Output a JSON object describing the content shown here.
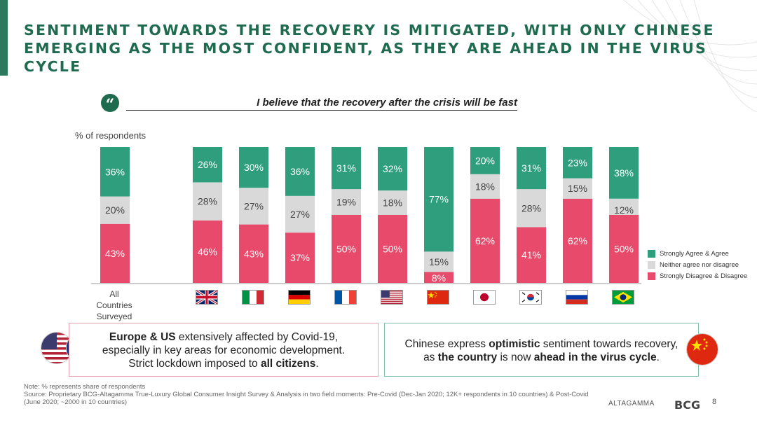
{
  "title": "SENTIMENT TOWARDS THE RECOVERY IS MITIGATED, WITH ONLY CHINESE EMERGING AS THE MOST CONFIDENT, AS THEY ARE AHEAD IN THE VIRUS CYCLE",
  "quote": "I believe that the recovery after the crisis will be fast",
  "quote_mark": "“",
  "colors": {
    "agree": "#2f9e7d",
    "neutral": "#d9d9d9",
    "disagree": "#e84a6b",
    "title": "#1f6b50"
  },
  "chart_data": {
    "type": "bar",
    "stacked": true,
    "ylabel": "% of respondents",
    "categories": [
      "All Countries Surveyed",
      "United Kingdom",
      "Italy",
      "Germany",
      "France",
      "United States",
      "China",
      "Japan",
      "South Korea",
      "Russia",
      "Brazil"
    ],
    "category_first_label": "All\nCountries\nSurveyed",
    "series": [
      {
        "name": "Strongly Disagree & Disagree",
        "values": [
          43,
          46,
          43,
          37,
          50,
          50,
          8,
          62,
          41,
          62,
          50
        ]
      },
      {
        "name": "Neither agree nor disagree",
        "values": [
          20,
          28,
          27,
          27,
          19,
          18,
          15,
          18,
          28,
          15,
          12
        ]
      },
      {
        "name": "Strongly Agree & Agree",
        "values": [
          36,
          26,
          30,
          36,
          31,
          32,
          77,
          20,
          31,
          23,
          38
        ]
      }
    ],
    "labels": [
      [
        "43%",
        "20%",
        "36%"
      ],
      [
        "46%",
        "28%",
        "26%"
      ],
      [
        "43%",
        "27%",
        "30%"
      ],
      [
        "37%",
        "27%",
        "36%"
      ],
      [
        "50%",
        "19%",
        "31%"
      ],
      [
        "50%",
        "18%",
        "32%"
      ],
      [
        "8%",
        "15%",
        "77%"
      ],
      [
        "62%",
        "18%",
        "20%"
      ],
      [
        "41%",
        "28%",
        "31%"
      ],
      [
        "62%",
        "15%",
        "23%"
      ],
      [
        "50%",
        "12%",
        "38%"
      ]
    ],
    "legend": [
      "Strongly Agree & Agree",
      "Neither agree nor disagree",
      "Strongly Disagree & Disagree"
    ],
    "legend_position": "right"
  },
  "box_left": {
    "line1_bold": "Europe & US",
    "line1_rest": " extensively affected by Covid-19,",
    "line2": "especially in key areas for economic development.",
    "line3_pre": "Strict lockdown imposed to ",
    "line3_bold": "all citizens",
    "line3_post": "."
  },
  "box_right": {
    "line1_pre": "Chinese express ",
    "line1_bold": "optimistic",
    "line1_post": " sentiment towards recovery,",
    "line2_pre": "as ",
    "line2_bold1": "the country",
    "line2_mid": " is now ",
    "line2_bold2": "ahead in the virus cycle",
    "line2_post": "."
  },
  "footnote": {
    "note": "Note: % represents share of respondents",
    "source": "Source: Proprietary BCG-Altagamma True-Luxury Global Consumer Insight Survey & Analysis in two field moments: Pre-Covid (Dec-Jan 2020; 12K+ respondents in 10 countries) & Post-Covid (June 2020; ~2000 in 10 countries)"
  },
  "page_number": "8",
  "logos": {
    "altagamma": "ALTAGAMMA",
    "bcg": "BCG"
  }
}
